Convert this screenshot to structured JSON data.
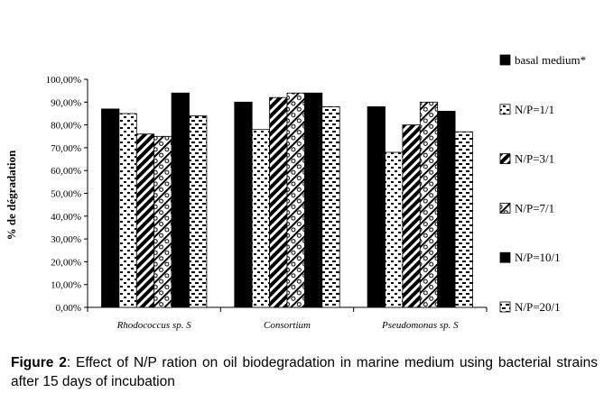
{
  "chart_data": {
    "type": "bar",
    "title": "",
    "xlabel": "",
    "ylabel": "% de dégradation",
    "ylim": [
      0,
      100
    ],
    "yticks": [
      "0,00%",
      "10,00%",
      "20,00%",
      "30,00%",
      "40,00%",
      "50,00%",
      "60,00%",
      "70,00%",
      "80,00%",
      "90,00%",
      "100,00%"
    ],
    "categories": [
      "Rhodococcus sp. S",
      "Consortium",
      "Pseudomonas sp. S"
    ],
    "series": [
      {
        "name": "basal medium*",
        "pattern": "solid",
        "values": [
          87,
          90,
          88
        ]
      },
      {
        "name": "N/P=1/1",
        "pattern": "bricks",
        "values": [
          85,
          78,
          68
        ]
      },
      {
        "name": "N/P=3/1",
        "pattern": "diag",
        "values": [
          76,
          92,
          80
        ]
      },
      {
        "name": "N/P=7/1",
        "pattern": "circles",
        "values": [
          75,
          94,
          90
        ]
      },
      {
        "name": "N/P=10/1",
        "pattern": "solid",
        "values": [
          94,
          94,
          86
        ]
      },
      {
        "name": "N/P=20/1",
        "pattern": "dashes",
        "values": [
          84,
          88,
          77
        ]
      }
    ]
  },
  "caption": {
    "label": "Figure 2",
    "text": ": Effect of  N/P ration on oil biodegradation in marine medium using bacterial strains after 15 days of incubation"
  }
}
